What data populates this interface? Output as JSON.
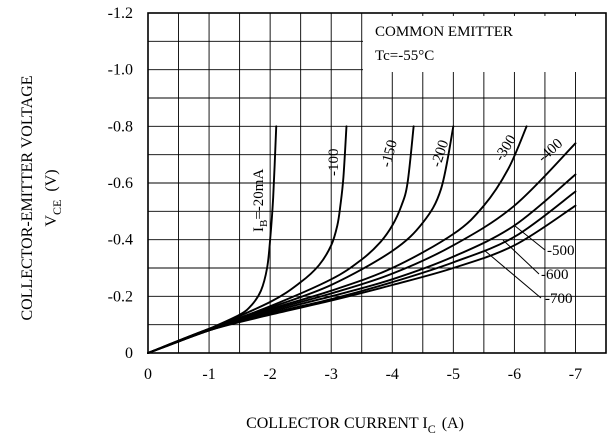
{
  "chart_data": {
    "type": "line",
    "title": "",
    "annotation": [
      "COMMON EMITTER",
      "Tc=-55°C"
    ],
    "xlabel": "COLLECTOR CURRENT I",
    "xlabel_sub": "C",
    "xlabel_unit": "(A)",
    "ylabel_line1": "COLLECTOR-EMITTER VOLTAGE",
    "ylabel_line2_main": "V",
    "ylabel_line2_sub": "CE",
    "ylabel_line2_unit": "(V)",
    "xlim": [
      0,
      -7.5
    ],
    "ylim": [
      0,
      -1.2
    ],
    "x_ticks": [
      "0",
      "-1",
      "-2",
      "-3",
      "-4",
      "-5",
      "-6",
      "-7"
    ],
    "y_ticks": [
      "0",
      "-0.2",
      "-0.4",
      "-0.6",
      "-0.8",
      "-1.0",
      "-1.2"
    ],
    "grid": true,
    "series": [
      {
        "name": "IB=-20mA",
        "label_main": "I",
        "label_sub": "B",
        "label_rest": "=-20mA",
        "x": [
          0,
          -0.5,
          -1.0,
          -1.5,
          -1.7,
          -1.85,
          -1.95,
          -2.0,
          -2.05,
          -2.1
        ],
        "y": [
          0,
          -0.04,
          -0.085,
          -0.135,
          -0.17,
          -0.22,
          -0.3,
          -0.4,
          -0.55,
          -0.8
        ]
      },
      {
        "name": "-100",
        "x": [
          0,
          -1.0,
          -2.0,
          -2.5,
          -2.8,
          -3.0,
          -3.1,
          -3.15,
          -3.2,
          -3.25
        ],
        "y": [
          0,
          -0.085,
          -0.18,
          -0.25,
          -0.31,
          -0.38,
          -0.45,
          -0.52,
          -0.62,
          -0.8
        ]
      },
      {
        "name": "-150",
        "x": [
          0,
          -1.0,
          -2.0,
          -3.0,
          -3.5,
          -3.8,
          -4.0,
          -4.15,
          -4.25,
          -4.35
        ],
        "y": [
          0,
          -0.085,
          -0.165,
          -0.26,
          -0.33,
          -0.39,
          -0.45,
          -0.52,
          -0.6,
          -0.8
        ]
      },
      {
        "name": "-200",
        "x": [
          0,
          -1.0,
          -2.0,
          -3.0,
          -4.0,
          -4.5,
          -4.8,
          -5.0
        ],
        "y": [
          0,
          -0.085,
          -0.16,
          -0.24,
          -0.36,
          -0.46,
          -0.58,
          -0.8
        ]
      },
      {
        "name": "-300",
        "x": [
          0,
          -1.0,
          -2.0,
          -3.0,
          -4.0,
          -5.0,
          -5.5,
          -5.9,
          -6.2
        ],
        "y": [
          0,
          -0.085,
          -0.155,
          -0.22,
          -0.3,
          -0.42,
          -0.52,
          -0.65,
          -0.8
        ]
      },
      {
        "name": "-400",
        "x": [
          0,
          -1.0,
          -2.0,
          -3.0,
          -4.0,
          -5.0,
          -6.0,
          -7.0
        ],
        "y": [
          0,
          -0.08,
          -0.15,
          -0.21,
          -0.28,
          -0.38,
          -0.52,
          -0.74
        ]
      },
      {
        "name": "-500",
        "x": [
          0,
          -1.0,
          -2.0,
          -3.0,
          -4.0,
          -5.0,
          -6.0,
          -7.0
        ],
        "y": [
          0,
          -0.08,
          -0.145,
          -0.2,
          -0.26,
          -0.34,
          -0.45,
          -0.63
        ]
      },
      {
        "name": "-600",
        "x": [
          0,
          -1.0,
          -2.0,
          -3.0,
          -4.0,
          -5.0,
          -6.0,
          -7.0
        ],
        "y": [
          0,
          -0.08,
          -0.14,
          -0.19,
          -0.25,
          -0.32,
          -0.41,
          -0.57
        ]
      },
      {
        "name": "-700",
        "x": [
          0,
          -1.0,
          -2.0,
          -3.0,
          -4.0,
          -5.0,
          -6.0,
          -7.0
        ],
        "y": [
          0,
          -0.08,
          -0.135,
          -0.185,
          -0.24,
          -0.3,
          -0.38,
          -0.52
        ]
      }
    ]
  }
}
